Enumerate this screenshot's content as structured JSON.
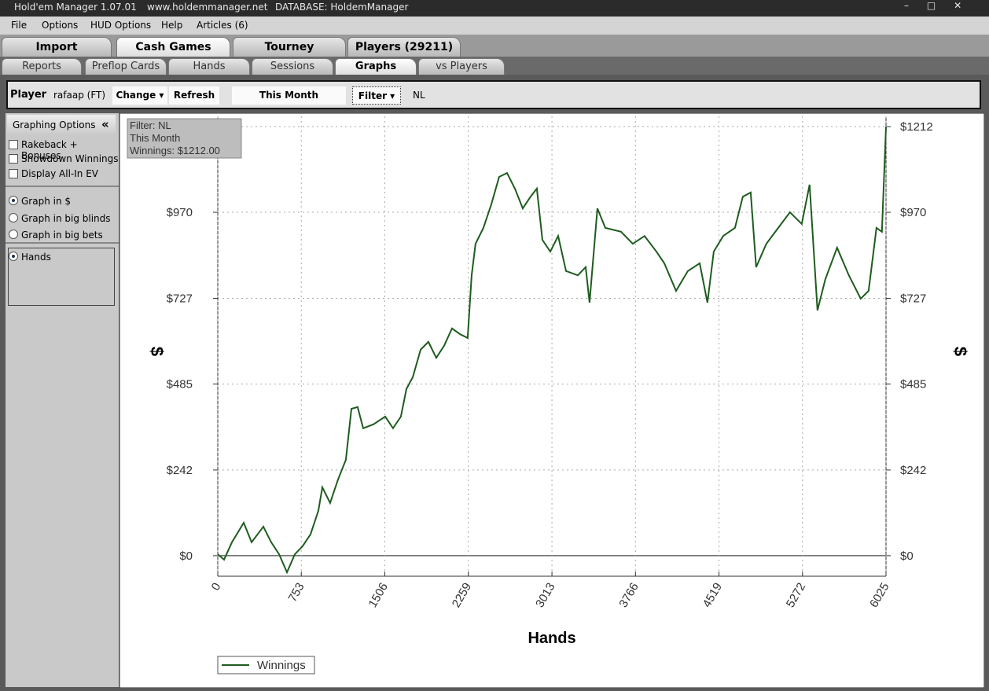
{
  "title_bar": {
    "app": "Hold'em Manager 1.07.01",
    "url": "www.holdemmanager.net",
    "database": "DATABASE: HoldemManager"
  },
  "menu": [
    "File",
    "Options",
    "HUD Options",
    "Help",
    "Articles (6)"
  ],
  "main_tabs": [
    {
      "label": "Import",
      "active": false
    },
    {
      "label": "Cash Games",
      "active": true
    },
    {
      "label": "Tourney",
      "active": false
    },
    {
      "label": "Players (29211)",
      "active": false
    }
  ],
  "sub_tabs": [
    {
      "label": "Reports",
      "active": false
    },
    {
      "label": "Preflop Cards",
      "active": false
    },
    {
      "label": "Hands",
      "active": false
    },
    {
      "label": "Sessions",
      "active": false
    },
    {
      "label": "Graphs",
      "active": true
    },
    {
      "label": "vs Players",
      "active": false
    }
  ],
  "toolbar": {
    "player_label": "Player",
    "player": "rafaap (FT)",
    "change": "Change",
    "refresh": "Refresh",
    "period": "This Month",
    "filter": "Filter",
    "filter_value": "NL"
  },
  "sidebar": {
    "title": "Graphing Options",
    "collapse": "«",
    "checkboxes": [
      {
        "label": "Rakeback + Bonuses",
        "checked": false
      },
      {
        "label": "Showdown Winnings",
        "checked": false
      },
      {
        "label": "Display All-In EV",
        "checked": false
      }
    ],
    "units": [
      {
        "label": "Graph in $",
        "checked": true
      },
      {
        "label": "Graph in big blinds",
        "checked": false
      },
      {
        "label": "Graph in big bets",
        "checked": false
      }
    ],
    "x_axis": [
      {
        "label": "Hands",
        "checked": true
      }
    ]
  },
  "chart_data": {
    "type": "line",
    "info": [
      "Filter: NL",
      "This Month",
      "Winnings: $1212.00"
    ],
    "x_label": "Hands",
    "y_label": "$",
    "grid": true,
    "legend": "bottom-left",
    "xlim": [
      0,
      6025
    ],
    "xticks": [
      0,
      753,
      1506,
      2259,
      3013,
      3766,
      4519,
      5272,
      6025
    ],
    "ylim": [
      -58,
      1241
    ],
    "yticks": [
      {
        "value": 0,
        "label": "$0"
      },
      {
        "value": 242,
        "label": "$242"
      },
      {
        "value": 485,
        "label": "$485"
      },
      {
        "value": 727,
        "label": "$727"
      },
      {
        "value": 970,
        "label": "$970"
      },
      {
        "value": 1212,
        "label": "$1212"
      }
    ],
    "x": [
      0,
      57,
      128,
      234,
      305,
      411,
      482,
      553,
      624,
      695,
      765,
      836,
      907,
      943,
      1013,
      1084,
      1155,
      1205,
      1261,
      1311,
      1403,
      1510,
      1580,
      1651,
      1701,
      1758,
      1829,
      1899,
      1970,
      2041,
      2112,
      2183,
      2253,
      2289,
      2324,
      2395,
      2466,
      2537,
      2608,
      2679,
      2750,
      2820,
      2877,
      2927,
      2998,
      3069,
      3140,
      3246,
      3317,
      3352,
      3423,
      3494,
      3636,
      3742,
      3848,
      3955,
      4026,
      4132,
      4238,
      4345,
      4415,
      4472,
      4557,
      4663,
      4734,
      4805,
      4854,
      4946,
      5053,
      5159,
      5265,
      5336,
      5407,
      5478,
      5584,
      5690,
      5797,
      5868,
      5939,
      5988,
      6025
    ],
    "series": [
      {
        "name": "Winnings",
        "color": "#1e5c1e",
        "values": [
          4,
          -11,
          38,
          93,
          38,
          82,
          38,
          4,
          -47,
          4,
          27,
          60,
          127,
          193,
          149,
          215,
          271,
          415,
          420,
          360,
          371,
          393,
          360,
          393,
          471,
          504,
          582,
          604,
          559,
          593,
          642,
          626,
          615,
          792,
          881,
          926,
          992,
          1070,
          1081,
          1037,
          981,
          1014,
          1037,
          892,
          859,
          903,
          804,
          792,
          815,
          715,
          981,
          926,
          915,
          881,
          903,
          859,
          826,
          748,
          804,
          826,
          715,
          859,
          903,
          926,
          1014,
          1026,
          815,
          881,
          926,
          970,
          937,
          1048,
          693,
          781,
          870,
          792,
          726,
          748,
          926,
          915,
          1212
        ]
      }
    ]
  }
}
